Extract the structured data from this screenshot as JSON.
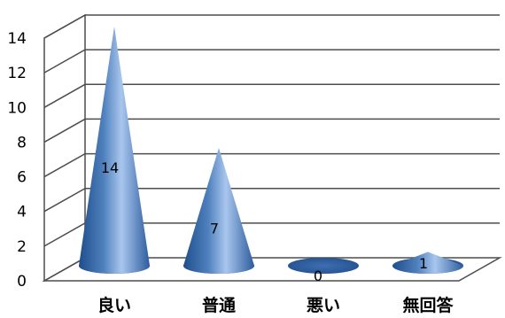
{
  "chart_data": {
    "type": "bar",
    "shape": "cone-3d",
    "categories": [
      "良い",
      "普通",
      "悪い",
      "無回答"
    ],
    "values": [
      14,
      7,
      0,
      1
    ],
    "ylim": [
      0,
      14
    ],
    "yticks": [
      "0",
      "2",
      "4",
      "6",
      "8",
      "10",
      "12",
      "14"
    ],
    "grid": true,
    "legend": "none",
    "colors": {
      "cone_dark": "#1F4E8C",
      "cone_mid": "#4F81BD",
      "cone_light": "#A9C6EE",
      "grid": "#4D4D4D"
    }
  }
}
